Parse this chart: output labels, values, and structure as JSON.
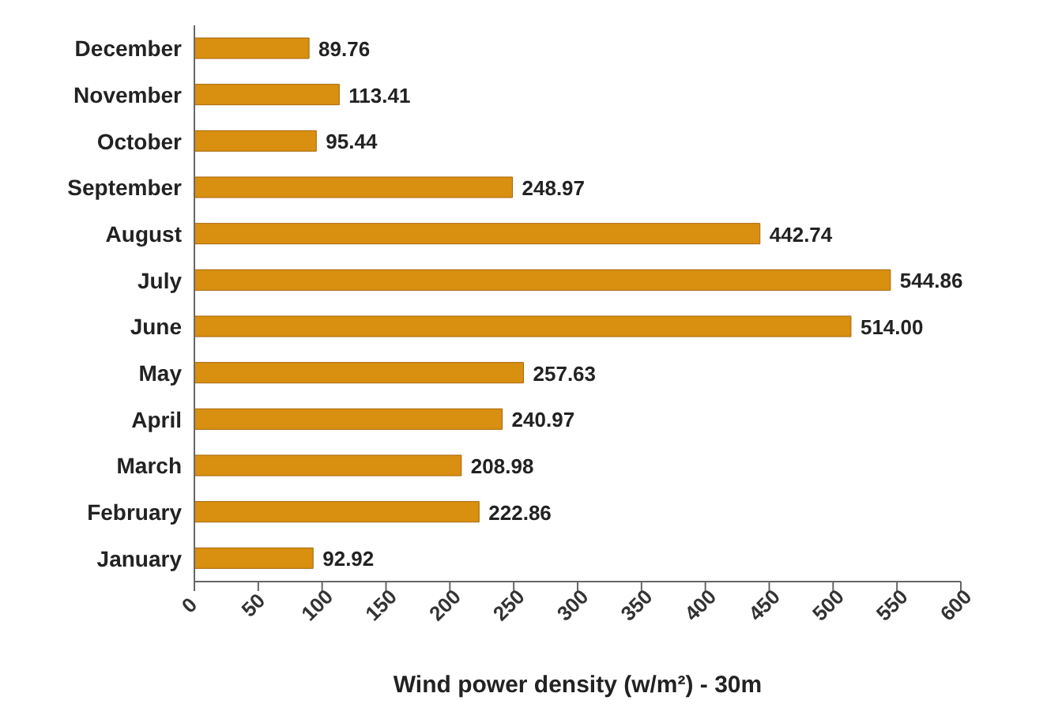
{
  "chart_data": {
    "type": "bar",
    "orientation": "horizontal",
    "xlabel": "Wind power density (w/m²) - 30m",
    "categories": [
      "December",
      "November",
      "October",
      "September",
      "August",
      "July",
      "June",
      "May",
      "April",
      "March",
      "February",
      "January"
    ],
    "values": [
      89.76,
      113.41,
      95.44,
      248.97,
      442.74,
      544.86,
      514.0,
      257.63,
      240.97,
      208.98,
      222.86,
      92.92
    ],
    "value_labels": [
      "89.76",
      "113.41",
      "95.44",
      "248.97",
      "442.74",
      "544.86",
      "514.00",
      "257.63",
      "240.97",
      "208.98",
      "222.86",
      "92.92"
    ],
    "color": "#d98f0f",
    "xlim": [
      0,
      600
    ],
    "xticks": [
      0,
      50,
      100,
      150,
      200,
      250,
      300,
      350,
      400,
      450,
      500,
      550,
      600
    ],
    "grid": false,
    "legend": false
  }
}
